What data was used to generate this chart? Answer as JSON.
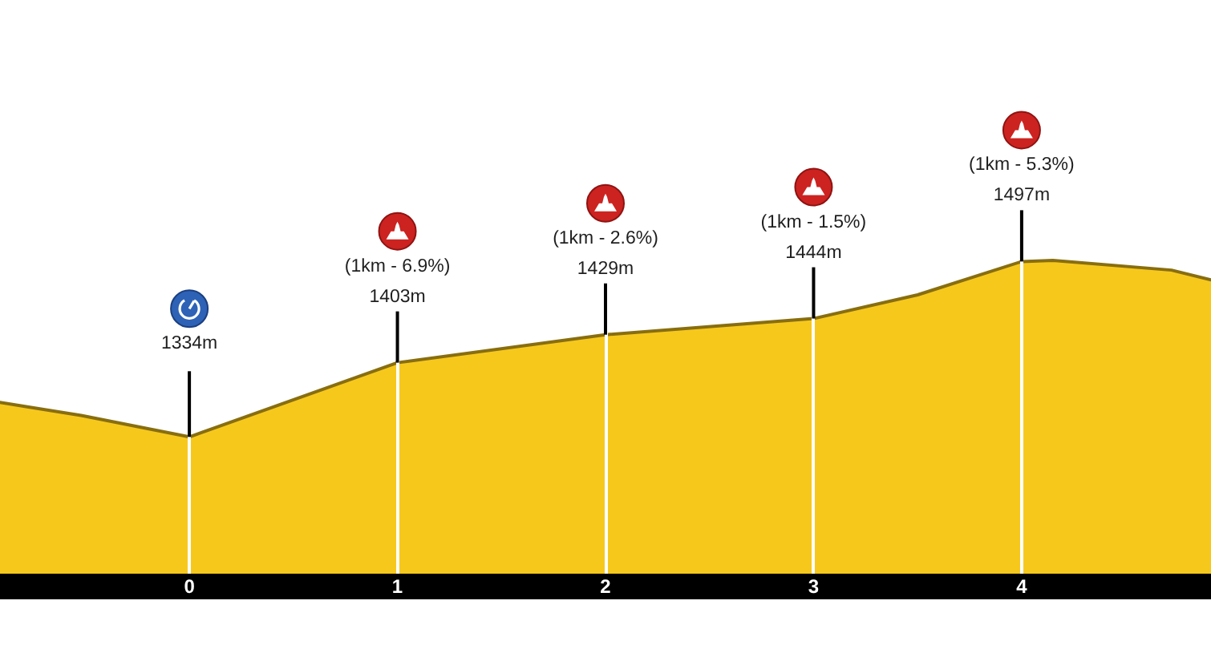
{
  "chart_data": {
    "type": "area",
    "x": [
      -0.91,
      -0.52,
      0,
      1,
      2,
      3,
      3.5,
      4,
      4.15,
      4.72,
      4.91
    ],
    "values": [
      1366,
      1354,
      1334,
      1403,
      1429,
      1444,
      1466,
      1497,
      1498,
      1489,
      1480
    ],
    "color": "#f7c81c",
    "value_labels": [
      null,
      null,
      "1334m",
      "1403m",
      "1429m",
      "1444m",
      null,
      "1497m",
      null,
      null,
      null
    ],
    "annotations": [
      "(1km - 6.9%)",
      "(1km - 2.6%)",
      "(1km - 1.5%)",
      "(1km - 5.3%)"
    ],
    "xlim": [
      -0.91,
      4.91
    ],
    "ylim": [
      1195,
      1740
    ],
    "xticks": [
      0,
      1,
      2,
      3,
      4
    ],
    "grid": "x",
    "tick_labels": "x"
  }
}
